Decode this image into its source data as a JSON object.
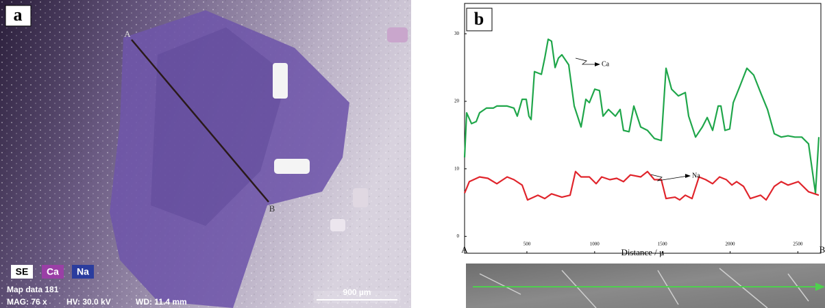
{
  "panel_a": {
    "label": "a",
    "point_a": "A",
    "point_b": "B",
    "legend": [
      "SE",
      "Ca",
      "Na"
    ],
    "info": [
      "Map data 181",
      "MAG: 76 x",
      "HV: 30.0 kV",
      "WD: 11.4 mm"
    ],
    "scale_bar": "900 µm"
  },
  "chart_data": {
    "type": "line",
    "panel_label": "b",
    "x_label": "Distance / µ",
    "endpoints": [
      "A",
      "B"
    ],
    "xlim": [
      40,
      2670
    ],
    "xticks": [
      500,
      1000,
      1500,
      2000,
      2500
    ],
    "ylim": [
      -2.5,
      34.5
    ],
    "yticks": [
      0,
      10,
      20,
      30
    ],
    "series": [
      {
        "name": "Ca",
        "color": "#1fa64a",
        "x": [
          40,
          55,
          91,
          126,
          151,
          202,
          252,
          278,
          354,
          404,
          429,
          465,
          495,
          515,
          531,
          556,
          607,
          632,
          657,
          682,
          708,
          733,
          758,
          809,
          849,
          900,
          935,
          961,
          1001,
          1036,
          1062,
          1102,
          1153,
          1188,
          1213,
          1254,
          1289,
          1340,
          1390,
          1441,
          1492,
          1527,
          1568,
          1618,
          1669,
          1694,
          1745,
          1795,
          1831,
          1871,
          1912,
          1932,
          1962,
          1997,
          2023,
          2073,
          2124,
          2174,
          2225,
          2276,
          2326,
          2377,
          2427,
          2478,
          2529,
          2579,
          2630,
          2655
        ],
        "values": [
          11.7,
          18.3,
          16.7,
          17,
          18.3,
          19,
          19,
          19.3,
          19.3,
          19,
          17.8,
          20.3,
          20.3,
          17.8,
          17.3,
          24.4,
          24,
          26.4,
          29.2,
          28.9,
          25,
          26.4,
          26.9,
          25.4,
          19.3,
          16.2,
          20.3,
          19.8,
          21.8,
          21.6,
          17.8,
          18.8,
          17.8,
          18.8,
          15.7,
          15.5,
          19.3,
          16.2,
          15.7,
          14.5,
          14.2,
          24.9,
          21.8,
          20.8,
          21.3,
          17.8,
          14.7,
          16.2,
          17.6,
          15.7,
          19.3,
          19.3,
          15.7,
          15.9,
          19.8,
          22.3,
          24.9,
          23.9,
          21.3,
          18.8,
          15.2,
          14.7,
          14.9,
          14.7,
          14.7,
          13.7,
          6.4,
          14.7
        ]
      },
      {
        "name": "Na",
        "color": "#e0242b",
        "x": [
          40,
          75,
          151,
          212,
          278,
          354,
          404,
          465,
          505,
          581,
          632,
          682,
          758,
          819,
          859,
          900,
          961,
          1011,
          1052,
          1112,
          1163,
          1213,
          1264,
          1340,
          1390,
          1441,
          1492,
          1527,
          1593,
          1628,
          1669,
          1719,
          1770,
          1820,
          1871,
          1922,
          1972,
          2013,
          2048,
          2099,
          2149,
          2225,
          2266,
          2326,
          2377,
          2427,
          2503,
          2579,
          2655
        ],
        "values": [
          6.4,
          8.1,
          8.8,
          8.6,
          7.8,
          8.8,
          8.4,
          7.6,
          5.4,
          6.1,
          5.6,
          6.3,
          5.8,
          6.1,
          9.6,
          8.8,
          8.8,
          7.8,
          8.8,
          8.4,
          8.6,
          8.1,
          9.1,
          8.8,
          9.6,
          8.4,
          8.4,
          5.6,
          5.8,
          5.4,
          6.1,
          5.6,
          8.8,
          8.4,
          7.8,
          8.8,
          8.4,
          7.6,
          8.1,
          7.4,
          5.6,
          6.1,
          5.4,
          7.4,
          8.1,
          7.6,
          8.1,
          6.6,
          6.1
        ]
      }
    ]
  }
}
